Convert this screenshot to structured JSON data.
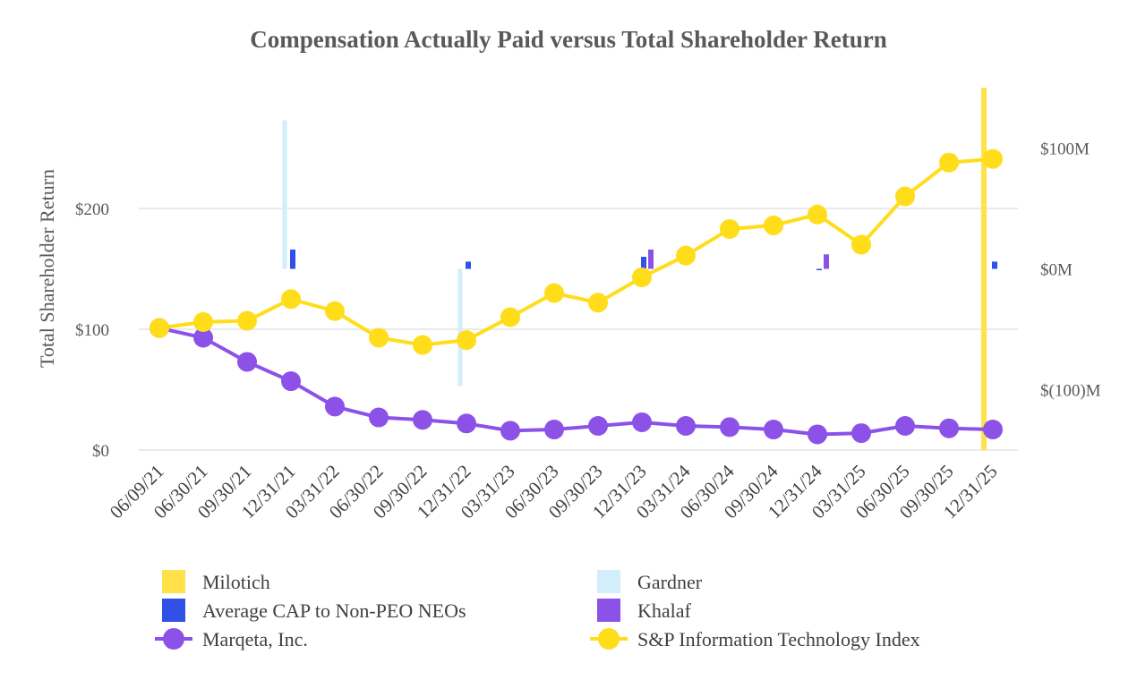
{
  "chart_data": {
    "type": "line",
    "title": "Compensation Actually Paid versus Total Shareholder Return",
    "ylabel": "Total Shareholder Return",
    "ylim": [
      0,
      300
    ],
    "y_ticks": [
      {
        "value": 0,
        "label": "$0"
      },
      {
        "value": 100,
        "label": "$100"
      },
      {
        "value": 200,
        "label": "$200"
      }
    ],
    "y2lim": [
      -150,
      150
    ],
    "y2_ticks": [
      {
        "value": 100,
        "label": "$100M"
      },
      {
        "value": 0,
        "label": "$0M"
      },
      {
        "value": -100,
        "label": "$(100)M"
      }
    ],
    "categories": [
      "06/09/21",
      "06/30/21",
      "09/30/21",
      "12/31/21",
      "03/31/22",
      "06/30/22",
      "09/30/22",
      "12/31/22",
      "03/31/23",
      "06/30/23",
      "09/30/23",
      "12/31/23",
      "03/31/24",
      "06/30/24",
      "09/30/24",
      "12/31/24",
      "03/31/25",
      "06/30/25",
      "09/30/25",
      "12/31/25"
    ],
    "line_series": [
      {
        "name": "Marqeta, Inc.",
        "color": "#8c52e8",
        "values": [
          101,
          93,
          73,
          57,
          36,
          27,
          25,
          22,
          16,
          17,
          20,
          23,
          20,
          19,
          17,
          13,
          14,
          20,
          18,
          17
        ]
      },
      {
        "name": "S&P Information Technology Index",
        "color": "#ffdd1a",
        "values": [
          101,
          106,
          107,
          125,
          115,
          93,
          87,
          91,
          110,
          130,
          122,
          143,
          161,
          183,
          186,
          195,
          170,
          210,
          238,
          241
        ]
      }
    ],
    "bar_series": [
      {
        "name": "Milotich",
        "color": "#ffe14a",
        "axis": "right",
        "points": [
          {
            "category": "12/31/25",
            "value": 150,
            "base": -150
          }
        ]
      },
      {
        "name": "Gardner",
        "color": "#d3eefb",
        "axis": "right",
        "points": [
          {
            "category": "12/31/21",
            "value": 123
          },
          {
            "category": "12/31/22",
            "value": -97,
            "base": 0
          },
          {
            "category": "12/31/22",
            "value": 0,
            "base": 0
          }
        ]
      },
      {
        "name": "Average CAP to Non-PEO NEOs",
        "color": "#3050e8",
        "axis": "right",
        "points": [
          {
            "category": "12/31/21",
            "value": 16
          },
          {
            "category": "12/31/22",
            "value": 6
          },
          {
            "category": "12/31/23",
            "value": 10
          },
          {
            "category": "12/31/24",
            "value": -1
          },
          {
            "category": "12/31/25",
            "value": 6
          }
        ]
      },
      {
        "name": "Khalaf",
        "color": "#8c52e8",
        "axis": "right",
        "points": [
          {
            "category": "12/31/23",
            "value": 16
          },
          {
            "category": "12/31/24",
            "value": 12
          }
        ]
      }
    ],
    "legend": [
      {
        "name": "Milotich",
        "kind": "box",
        "color": "#ffe14a"
      },
      {
        "name": "Gardner",
        "kind": "box",
        "color": "#d3eefb"
      },
      {
        "name": "Average CAP to Non-PEO NEOs",
        "kind": "box",
        "color": "#3050e8"
      },
      {
        "name": "Khalaf",
        "kind": "box",
        "color": "#8c52e8"
      },
      {
        "name": "Marqeta, Inc.",
        "kind": "line",
        "color": "#8c52e8"
      },
      {
        "name": "S&P Information Technology Index",
        "kind": "line",
        "color": "#ffdd1a"
      }
    ],
    "legend_position": "bottom",
    "grid": true
  }
}
